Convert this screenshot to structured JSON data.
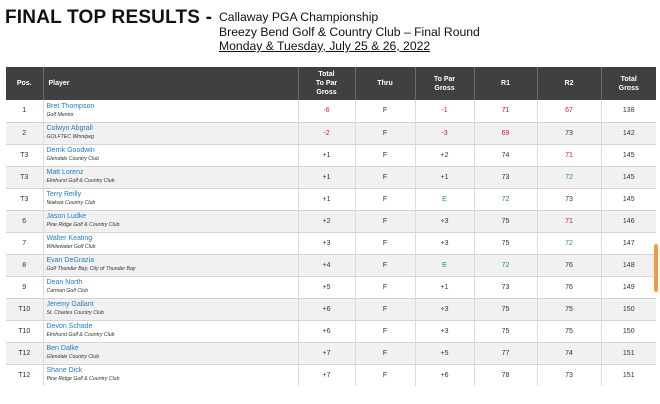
{
  "header": {
    "title": "FINAL TOP RESULTS -",
    "event_name": "Callaway PGA Championship",
    "venue_round": "Breezy Bend Golf & Country Club – Final Round",
    "dates": "Monday & Tuesday, July 25 & 26, 2022"
  },
  "table": {
    "columns": {
      "pos": "Pos.",
      "player": "Player",
      "total_to_par": "Total\nTo Par\nGross",
      "thru": "Thru",
      "to_par": "To Par\nGross",
      "r1": "R1",
      "r2": "R2",
      "total": "Total\nGross"
    },
    "rows": [
      {
        "pos": "1",
        "name": "Bret Thompson",
        "club": "Golf Mentor",
        "total_to_par": "-6",
        "thru": "F",
        "to_par": "-1",
        "r1": "71",
        "r2": "67",
        "total": "138",
        "c_total_to_par": "red",
        "c_to_par": "red",
        "c_r1": "red",
        "c_r2": "red"
      },
      {
        "pos": "2",
        "name": "Colwyn Abgrall",
        "club": "GOLFTEC Winnipeg",
        "total_to_par": "-2",
        "thru": "F",
        "to_par": "-3",
        "r1": "69",
        "r2": "73",
        "total": "142",
        "c_total_to_par": "red",
        "c_to_par": "red",
        "c_r1": "red",
        "c_r2": "normal"
      },
      {
        "pos": "T3",
        "name": "Derrik Goodwin",
        "club": "Glendale Country Club",
        "total_to_par": "+1",
        "thru": "F",
        "to_par": "+2",
        "r1": "74",
        "r2": "71",
        "total": "145",
        "c_total_to_par": "normal",
        "c_to_par": "normal",
        "c_r1": "normal",
        "c_r2": "red"
      },
      {
        "pos": "T3",
        "name": "Matt Lorenz",
        "club": "Elmhurst Golf & Country Club",
        "total_to_par": "+1",
        "thru": "F",
        "to_par": "+1",
        "r1": "73",
        "r2": "72",
        "total": "145",
        "c_total_to_par": "normal",
        "c_to_par": "normal",
        "c_r1": "normal",
        "c_r2": "green"
      },
      {
        "pos": "T3",
        "name": "Terry Reilly",
        "club": "Niakwa Country Club",
        "total_to_par": "+1",
        "thru": "F",
        "to_par": "E",
        "r1": "72",
        "r2": "73",
        "total": "145",
        "c_total_to_par": "normal",
        "c_to_par": "green",
        "c_r1": "green",
        "c_r2": "normal"
      },
      {
        "pos": "6",
        "name": "Jason Ludke",
        "club": "Pine Ridge Golf & Country Club",
        "total_to_par": "+2",
        "thru": "F",
        "to_par": "+3",
        "r1": "75",
        "r2": "71",
        "total": "146",
        "c_total_to_par": "normal",
        "c_to_par": "normal",
        "c_r1": "normal",
        "c_r2": "red"
      },
      {
        "pos": "7",
        "name": "Walter Keating",
        "club": "Whitewater Golf Club",
        "total_to_par": "+3",
        "thru": "F",
        "to_par": "+3",
        "r1": "75",
        "r2": "72",
        "total": "147",
        "c_total_to_par": "normal",
        "c_to_par": "normal",
        "c_r1": "normal",
        "c_r2": "green"
      },
      {
        "pos": "8",
        "name": "Evan DeGrazia",
        "club": "Golf Thunder Bay, City of Thunder Bay",
        "total_to_par": "+4",
        "thru": "F",
        "to_par": "E",
        "r1": "72",
        "r2": "76",
        "total": "148",
        "c_total_to_par": "normal",
        "c_to_par": "green",
        "c_r1": "green",
        "c_r2": "normal"
      },
      {
        "pos": "9",
        "name": "Dean North",
        "club": "Carman Golf Club",
        "total_to_par": "+5",
        "thru": "F",
        "to_par": "+1",
        "r1": "73",
        "r2": "76",
        "total": "149",
        "c_total_to_par": "normal",
        "c_to_par": "normal",
        "c_r1": "normal",
        "c_r2": "normal"
      },
      {
        "pos": "T10",
        "name": "Jeremy Gallant",
        "club": "St. Charles Country Club",
        "total_to_par": "+6",
        "thru": "F",
        "to_par": "+3",
        "r1": "75",
        "r2": "75",
        "total": "150",
        "c_total_to_par": "normal",
        "c_to_par": "normal",
        "c_r1": "normal",
        "c_r2": "normal"
      },
      {
        "pos": "T10",
        "name": "Devon Schade",
        "club": "Elmhurst Golf & Country Club",
        "total_to_par": "+6",
        "thru": "F",
        "to_par": "+3",
        "r1": "75",
        "r2": "75",
        "total": "150",
        "c_total_to_par": "normal",
        "c_to_par": "normal",
        "c_r1": "normal",
        "c_r2": "normal"
      },
      {
        "pos": "T12",
        "name": "Ben Dalke",
        "club": "Glendale Country Club",
        "total_to_par": "+7",
        "thru": "F",
        "to_par": "+5",
        "r1": "77",
        "r2": "74",
        "total": "151",
        "c_total_to_par": "normal",
        "c_to_par": "normal",
        "c_r1": "normal",
        "c_r2": "normal"
      },
      {
        "pos": "T12",
        "name": "Shane Dick",
        "club": "Pine Ridge Golf & Country Club",
        "total_to_par": "+7",
        "thru": "F",
        "to_par": "+6",
        "r1": "78",
        "r2": "73",
        "total": "151",
        "c_total_to_par": "normal",
        "c_to_par": "normal",
        "c_r1": "normal",
        "c_r2": "normal"
      }
    ]
  },
  "colors": {
    "header_bg": "#404040",
    "link_blue": "#1e7fc4",
    "under_par_red": "#e0142a",
    "even_par_green": "#1f9d3a",
    "scroll_accent": "#f39b3d"
  }
}
